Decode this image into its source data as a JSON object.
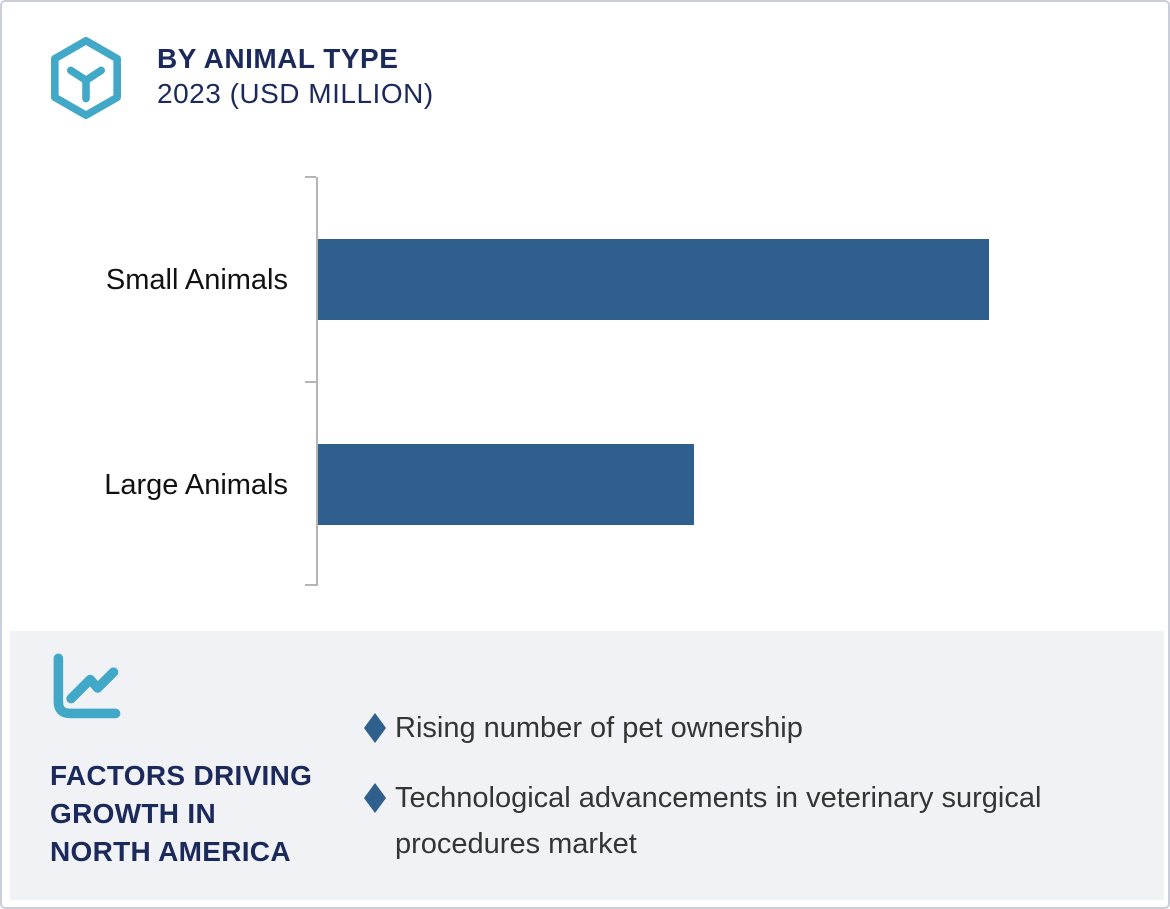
{
  "header": {
    "logo_icon": "hexagon-cube-icon",
    "title": "BY ANIMAL TYPE",
    "subtitle": "2023 (USD MILLION)"
  },
  "chart_data": {
    "type": "bar",
    "orientation": "horizontal",
    "title": "BY ANIMAL TYPE",
    "subtitle": "2023 (USD MILLION)",
    "unit": "USD Million",
    "categories": [
      "Small Animals",
      "Large Animals"
    ],
    "values": [
      100,
      56
    ],
    "values_note": "relative bar lengths (%); no numeric axis tick labels are shown in the image",
    "bar_color": "#2e5f8d",
    "axis_ticks": 3,
    "grid": false,
    "legend": false
  },
  "factors": {
    "icon": "line-chart-icon",
    "heading_lines": [
      "FACTORS DRIVING",
      "GROWTH IN",
      "NORTH AMERICA"
    ],
    "bullet_icon": "diamond-bullet-icon",
    "bullets": [
      "Rising number of pet ownership",
      "Technological advancements in veterinary surgical procedures market"
    ]
  },
  "colors": {
    "accent_teal": "#41a8c8",
    "navy": "#1b2a5a",
    "bar_blue": "#2e5f8d",
    "panel_bg": "#f0f2f6",
    "axis_gray": "#b5b5b5",
    "body_text": "#353535"
  }
}
